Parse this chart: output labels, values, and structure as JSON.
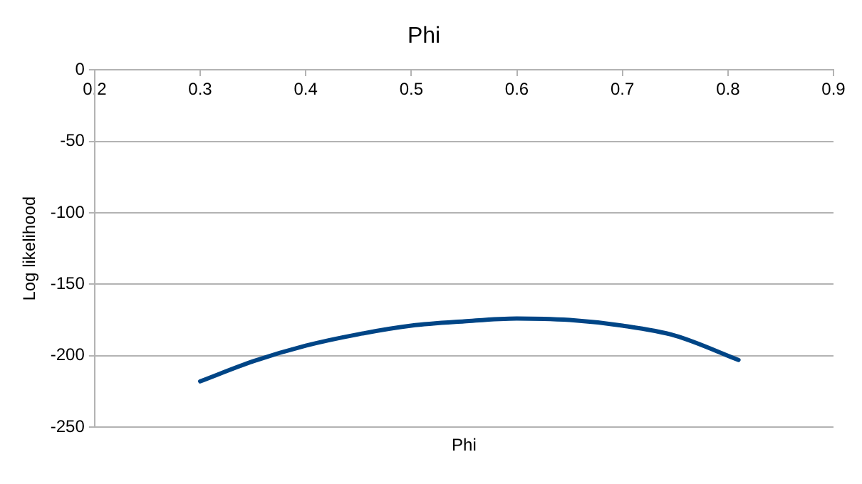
{
  "chart_data": {
    "type": "line",
    "title": "Phi",
    "xlabel": "Phi",
    "ylabel": "Log likelihood",
    "series": [
      {
        "color": "#004586",
        "x": [
          0.3,
          0.35,
          0.4,
          0.45,
          0.5,
          0.55,
          0.6,
          0.65,
          0.7,
          0.75,
          0.81
        ],
        "values": [
          -218,
          -204,
          -193,
          -185,
          -179,
          -176,
          -174,
          -175,
          -179,
          -186,
          -203
        ]
      }
    ],
    "xlim": [
      0.2,
      0.9
    ],
    "xticks": [
      0.2,
      0.3,
      0.4,
      0.5,
      0.6,
      0.7,
      0.8,
      0.9
    ],
    "ylim": [
      -250,
      0
    ],
    "yticks": [
      -250,
      -200,
      -150,
      -100,
      -50,
      0
    ],
    "grid": "y",
    "legend": false,
    "marker": "none",
    "line_style": "solid"
  }
}
